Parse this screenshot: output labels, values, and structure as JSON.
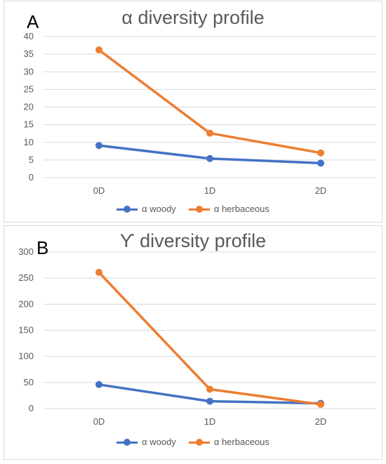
{
  "colors": {
    "woody": "#4472C4",
    "herbaceous": "#ED7D31",
    "grid": "#d9d9d9",
    "text": "#595959"
  },
  "chart_data": [
    {
      "panel_label": "A",
      "type": "line",
      "title": "α diversity profile",
      "categories": [
        "0D",
        "1D",
        "2D"
      ],
      "series": [
        {
          "name": "α woody",
          "values": [
            9.1,
            5.4,
            4.1
          ]
        },
        {
          "name": "α herbaceous",
          "values": [
            36.2,
            12.6,
            7.0
          ]
        }
      ],
      "ylim": [
        0,
        40
      ],
      "yticks": [
        0,
        5,
        10,
        15,
        20,
        25,
        30,
        35,
        40
      ],
      "grid": true,
      "legend": "bottom"
    },
    {
      "panel_label": "B",
      "type": "line",
      "title": "ϒ diversity profile",
      "categories": [
        "0D",
        "1D",
        "2D"
      ],
      "series": [
        {
          "name": "α woody",
          "values": [
            46,
            14,
            10
          ]
        },
        {
          "name": "α herbaceous",
          "values": [
            261,
            37,
            8
          ]
        }
      ],
      "ylim": [
        0,
        300
      ],
      "yticks": [
        0,
        50,
        100,
        150,
        200,
        250,
        300
      ],
      "grid": true,
      "legend": "bottom"
    }
  ]
}
